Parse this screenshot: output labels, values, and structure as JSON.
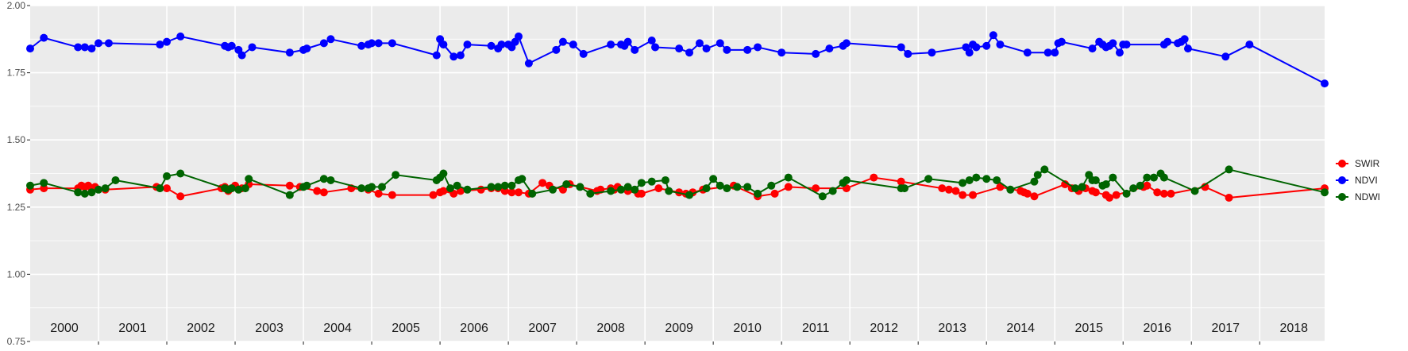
{
  "chart_data": {
    "type": "line",
    "title": "",
    "xlabel": "",
    "ylabel": "",
    "xlim": [
      2000.0,
      2018.95
    ],
    "ylim": [
      0.75,
      2.0
    ],
    "y_ticks": [
      0.75,
      1.0,
      1.25,
      1.5,
      1.75,
      2.0
    ],
    "y_tick_labels": [
      "0.75",
      "1.00",
      "1.25",
      "1.50",
      "1.75",
      "2.00"
    ],
    "year_labels": [
      "2000",
      "2001",
      "2002",
      "2003",
      "2004",
      "2005",
      "2006",
      "2007",
      "2008",
      "2009",
      "2010",
      "2011",
      "2012",
      "2013",
      "2014",
      "2015",
      "2016",
      "2017",
      "2018"
    ],
    "grid": true,
    "legend_position": "right",
    "series": [
      {
        "name": "SWIR",
        "color": "#ff0000",
        "points": [
          [
            2000.0,
            1.315
          ],
          [
            2000.2,
            1.32
          ],
          [
            2000.7,
            1.32
          ],
          [
            2000.75,
            1.33
          ],
          [
            2000.8,
            1.325
          ],
          [
            2000.85,
            1.33
          ],
          [
            2000.9,
            1.32
          ],
          [
            2000.95,
            1.325
          ],
          [
            2001.1,
            1.315
          ],
          [
            2001.85,
            1.325
          ],
          [
            2002.0,
            1.32
          ],
          [
            2002.2,
            1.29
          ],
          [
            2002.8,
            1.32
          ],
          [
            2002.85,
            1.325
          ],
          [
            2002.9,
            1.31
          ],
          [
            2002.95,
            1.32
          ],
          [
            2003.0,
            1.33
          ],
          [
            2003.1,
            1.32
          ],
          [
            2003.2,
            1.335
          ],
          [
            2003.8,
            1.33
          ],
          [
            2003.95,
            1.325
          ],
          [
            2004.2,
            1.31
          ],
          [
            2004.3,
            1.305
          ],
          [
            2004.7,
            1.32
          ],
          [
            2004.95,
            1.315
          ],
          [
            2005.1,
            1.3
          ],
          [
            2005.3,
            1.295
          ],
          [
            2005.9,
            1.295
          ],
          [
            2006.0,
            1.305
          ],
          [
            2006.05,
            1.31
          ],
          [
            2006.2,
            1.3
          ],
          [
            2006.3,
            1.31
          ],
          [
            2006.6,
            1.315
          ],
          [
            2006.75,
            1.32
          ],
          [
            2006.85,
            1.32
          ],
          [
            2006.95,
            1.31
          ],
          [
            2007.05,
            1.305
          ],
          [
            2007.15,
            1.305
          ],
          [
            2007.3,
            1.3
          ],
          [
            2007.5,
            1.34
          ],
          [
            2007.6,
            1.33
          ],
          [
            2007.8,
            1.315
          ],
          [
            2007.9,
            1.335
          ],
          [
            2008.3,
            1.31
          ],
          [
            2008.35,
            1.315
          ],
          [
            2008.5,
            1.32
          ],
          [
            2008.55,
            1.315
          ],
          [
            2008.6,
            1.325
          ],
          [
            2008.75,
            1.31
          ],
          [
            2008.9,
            1.3
          ],
          [
            2008.95,
            1.3
          ],
          [
            2009.2,
            1.32
          ],
          [
            2009.5,
            1.305
          ],
          [
            2009.6,
            1.3
          ],
          [
            2009.7,
            1.305
          ],
          [
            2009.85,
            1.315
          ],
          [
            2010.3,
            1.33
          ],
          [
            2010.65,
            1.29
          ],
          [
            2010.9,
            1.3
          ],
          [
            2011.1,
            1.325
          ],
          [
            2011.5,
            1.32
          ],
          [
            2011.95,
            1.32
          ],
          [
            2012.35,
            1.36
          ],
          [
            2012.75,
            1.345
          ],
          [
            2013.35,
            1.32
          ],
          [
            2013.45,
            1.315
          ],
          [
            2013.55,
            1.31
          ],
          [
            2013.65,
            1.295
          ],
          [
            2013.8,
            1.295
          ],
          [
            2014.2,
            1.325
          ],
          [
            2014.5,
            1.31
          ],
          [
            2014.55,
            1.305
          ],
          [
            2014.6,
            1.3
          ],
          [
            2014.7,
            1.29
          ],
          [
            2015.15,
            1.335
          ],
          [
            2015.25,
            1.32
          ],
          [
            2015.35,
            1.31
          ],
          [
            2015.45,
            1.32
          ],
          [
            2015.55,
            1.31
          ],
          [
            2015.6,
            1.305
          ],
          [
            2015.75,
            1.295
          ],
          [
            2015.8,
            1.285
          ],
          [
            2015.9,
            1.295
          ],
          [
            2016.3,
            1.325
          ],
          [
            2016.35,
            1.33
          ],
          [
            2016.5,
            1.305
          ],
          [
            2016.6,
            1.3
          ],
          [
            2016.7,
            1.3
          ],
          [
            2017.2,
            1.325
          ],
          [
            2017.55,
            1.285
          ],
          [
            2018.95,
            1.32
          ]
        ]
      },
      {
        "name": "NDVI",
        "color": "#0000ff",
        "points": [
          [
            2000.0,
            1.84
          ],
          [
            2000.2,
            1.88
          ],
          [
            2000.7,
            1.845
          ],
          [
            2000.8,
            1.845
          ],
          [
            2000.9,
            1.84
          ],
          [
            2001.0,
            1.86
          ],
          [
            2001.15,
            1.86
          ],
          [
            2001.9,
            1.855
          ],
          [
            2002.0,
            1.865
          ],
          [
            2002.2,
            1.885
          ],
          [
            2002.85,
            1.85
          ],
          [
            2002.9,
            1.845
          ],
          [
            2002.95,
            1.85
          ],
          [
            2003.05,
            1.835
          ],
          [
            2003.1,
            1.815
          ],
          [
            2003.25,
            1.845
          ],
          [
            2003.8,
            1.825
          ],
          [
            2004.0,
            1.835
          ],
          [
            2004.05,
            1.84
          ],
          [
            2004.3,
            1.86
          ],
          [
            2004.4,
            1.875
          ],
          [
            2004.85,
            1.85
          ],
          [
            2004.95,
            1.855
          ],
          [
            2005.0,
            1.86
          ],
          [
            2005.1,
            1.86
          ],
          [
            2005.3,
            1.86
          ],
          [
            2005.95,
            1.815
          ],
          [
            2006.0,
            1.875
          ],
          [
            2006.05,
            1.855
          ],
          [
            2006.2,
            1.81
          ],
          [
            2006.3,
            1.815
          ],
          [
            2006.4,
            1.855
          ],
          [
            2006.75,
            1.85
          ],
          [
            2006.85,
            1.84
          ],
          [
            2006.9,
            1.855
          ],
          [
            2007.0,
            1.855
          ],
          [
            2007.05,
            1.845
          ],
          [
            2007.1,
            1.865
          ],
          [
            2007.15,
            1.885
          ],
          [
            2007.3,
            1.785
          ],
          [
            2007.7,
            1.835
          ],
          [
            2007.8,
            1.865
          ],
          [
            2007.95,
            1.855
          ],
          [
            2008.1,
            1.82
          ],
          [
            2008.5,
            1.855
          ],
          [
            2008.65,
            1.855
          ],
          [
            2008.7,
            1.85
          ],
          [
            2008.75,
            1.865
          ],
          [
            2008.85,
            1.835
          ],
          [
            2009.1,
            1.87
          ],
          [
            2009.15,
            1.845
          ],
          [
            2009.5,
            1.84
          ],
          [
            2009.65,
            1.825
          ],
          [
            2009.8,
            1.86
          ],
          [
            2009.9,
            1.84
          ],
          [
            2010.1,
            1.86
          ],
          [
            2010.2,
            1.835
          ],
          [
            2010.5,
            1.835
          ],
          [
            2010.65,
            1.845
          ],
          [
            2011.0,
            1.825
          ],
          [
            2011.5,
            1.82
          ],
          [
            2011.7,
            1.84
          ],
          [
            2011.9,
            1.85
          ],
          [
            2011.95,
            1.86
          ],
          [
            2012.75,
            1.845
          ],
          [
            2012.85,
            1.82
          ],
          [
            2013.2,
            1.825
          ],
          [
            2013.7,
            1.845
          ],
          [
            2013.75,
            1.825
          ],
          [
            2013.8,
            1.855
          ],
          [
            2013.85,
            1.845
          ],
          [
            2014.0,
            1.85
          ],
          [
            2014.1,
            1.89
          ],
          [
            2014.2,
            1.855
          ],
          [
            2014.6,
            1.825
          ],
          [
            2014.9,
            1.825
          ],
          [
            2015.0,
            1.825
          ],
          [
            2015.05,
            1.86
          ],
          [
            2015.1,
            1.865
          ],
          [
            2015.55,
            1.84
          ],
          [
            2015.65,
            1.865
          ],
          [
            2015.7,
            1.855
          ],
          [
            2015.75,
            1.845
          ],
          [
            2015.8,
            1.85
          ],
          [
            2015.85,
            1.86
          ],
          [
            2015.95,
            1.825
          ],
          [
            2016.0,
            1.855
          ],
          [
            2016.05,
            1.855
          ],
          [
            2016.6,
            1.855
          ],
          [
            2016.65,
            1.865
          ],
          [
            2016.8,
            1.86
          ],
          [
            2016.85,
            1.865
          ],
          [
            2016.9,
            1.875
          ],
          [
            2016.95,
            1.84
          ],
          [
            2017.5,
            1.81
          ],
          [
            2017.85,
            1.855
          ],
          [
            2018.95,
            1.71
          ]
        ]
      },
      {
        "name": "NDWI",
        "color": "#006400",
        "points": [
          [
            2000.0,
            1.33
          ],
          [
            2000.2,
            1.34
          ],
          [
            2000.7,
            1.305
          ],
          [
            2000.8,
            1.3
          ],
          [
            2000.9,
            1.305
          ],
          [
            2001.0,
            1.315
          ],
          [
            2001.1,
            1.32
          ],
          [
            2001.25,
            1.35
          ],
          [
            2001.9,
            1.32
          ],
          [
            2002.0,
            1.365
          ],
          [
            2002.2,
            1.375
          ],
          [
            2002.85,
            1.32
          ],
          [
            2002.9,
            1.315
          ],
          [
            2002.95,
            1.32
          ],
          [
            2003.05,
            1.315
          ],
          [
            2003.15,
            1.32
          ],
          [
            2003.2,
            1.355
          ],
          [
            2003.8,
            1.295
          ],
          [
            2004.0,
            1.325
          ],
          [
            2004.05,
            1.33
          ],
          [
            2004.3,
            1.355
          ],
          [
            2004.4,
            1.35
          ],
          [
            2004.85,
            1.32
          ],
          [
            2004.95,
            1.32
          ],
          [
            2005.0,
            1.325
          ],
          [
            2005.15,
            1.325
          ],
          [
            2005.35,
            1.37
          ],
          [
            2005.95,
            1.35
          ],
          [
            2006.0,
            1.36
          ],
          [
            2006.05,
            1.375
          ],
          [
            2006.15,
            1.32
          ],
          [
            2006.25,
            1.33
          ],
          [
            2006.4,
            1.315
          ],
          [
            2006.75,
            1.325
          ],
          [
            2006.85,
            1.325
          ],
          [
            2006.95,
            1.33
          ],
          [
            2007.05,
            1.33
          ],
          [
            2007.15,
            1.35
          ],
          [
            2007.2,
            1.355
          ],
          [
            2007.35,
            1.3
          ],
          [
            2007.65,
            1.315
          ],
          [
            2007.85,
            1.335
          ],
          [
            2008.05,
            1.325
          ],
          [
            2008.2,
            1.3
          ],
          [
            2008.5,
            1.31
          ],
          [
            2008.65,
            1.315
          ],
          [
            2008.75,
            1.325
          ],
          [
            2008.85,
            1.315
          ],
          [
            2008.95,
            1.34
          ],
          [
            2009.1,
            1.345
          ],
          [
            2009.3,
            1.35
          ],
          [
            2009.35,
            1.31
          ],
          [
            2009.65,
            1.295
          ],
          [
            2009.9,
            1.32
          ],
          [
            2010.0,
            1.355
          ],
          [
            2010.1,
            1.33
          ],
          [
            2010.2,
            1.32
          ],
          [
            2010.35,
            1.325
          ],
          [
            2010.5,
            1.325
          ],
          [
            2010.65,
            1.3
          ],
          [
            2010.85,
            1.33
          ],
          [
            2011.1,
            1.36
          ],
          [
            2011.6,
            1.29
          ],
          [
            2011.75,
            1.31
          ],
          [
            2011.9,
            1.34
          ],
          [
            2011.95,
            1.35
          ],
          [
            2012.75,
            1.32
          ],
          [
            2012.8,
            1.32
          ],
          [
            2013.15,
            1.355
          ],
          [
            2013.65,
            1.34
          ],
          [
            2013.75,
            1.35
          ],
          [
            2013.85,
            1.36
          ],
          [
            2014.0,
            1.355
          ],
          [
            2014.15,
            1.35
          ],
          [
            2014.35,
            1.315
          ],
          [
            2014.7,
            1.345
          ],
          [
            2014.75,
            1.37
          ],
          [
            2014.85,
            1.39
          ],
          [
            2015.3,
            1.32
          ],
          [
            2015.4,
            1.325
          ],
          [
            2015.5,
            1.37
          ],
          [
            2015.55,
            1.35
          ],
          [
            2015.6,
            1.35
          ],
          [
            2015.7,
            1.33
          ],
          [
            2015.75,
            1.335
          ],
          [
            2015.85,
            1.36
          ],
          [
            2016.05,
            1.3
          ],
          [
            2016.15,
            1.32
          ],
          [
            2016.25,
            1.33
          ],
          [
            2016.35,
            1.36
          ],
          [
            2016.45,
            1.36
          ],
          [
            2016.55,
            1.375
          ],
          [
            2016.6,
            1.36
          ],
          [
            2017.05,
            1.31
          ],
          [
            2017.55,
            1.39
          ],
          [
            2018.95,
            1.305
          ]
        ]
      }
    ]
  }
}
